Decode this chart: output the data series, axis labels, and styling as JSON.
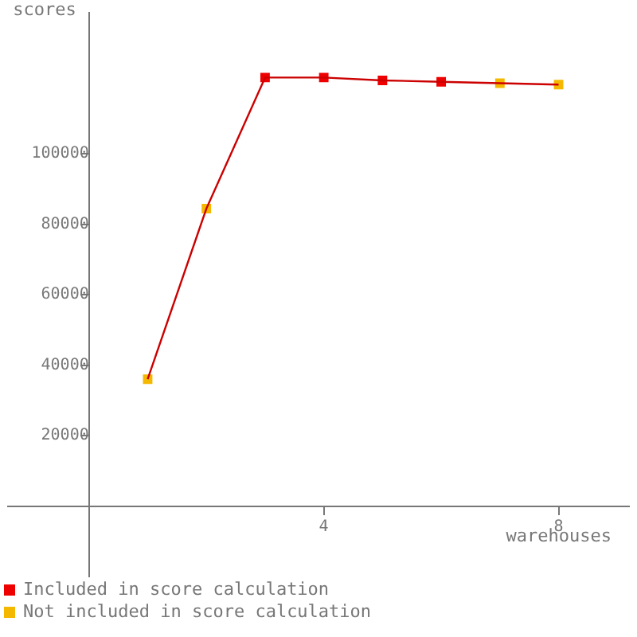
{
  "chart_data": {
    "type": "line",
    "xlabel": "warehouses",
    "ylabel": "scores",
    "x": [
      1,
      2,
      3,
      4,
      5,
      6,
      7,
      8
    ],
    "series": [
      {
        "color": "#cc0000",
        "marker": "none",
        "values": [
          36000,
          84400,
          121600,
          121600,
          120800,
          120400,
          120000,
          119600
        ]
      },
      {
        "type": "scatter",
        "name": "Included in score calculation",
        "color": "#ee0000",
        "marker": "square",
        "values": [
          null,
          null,
          121600,
          121600,
          120800,
          120400,
          null,
          null
        ]
      },
      {
        "type": "scatter",
        "name": "Not included in score calculation",
        "color": "#f5b800",
        "marker": "square",
        "values": [
          36000,
          84400,
          null,
          null,
          null,
          null,
          120000,
          119600
        ]
      }
    ],
    "xlim": [
      -1.38,
      9.2
    ],
    "ylim": [
      -20000,
      140000
    ],
    "xticks": [
      4,
      8
    ],
    "yticks": [
      20000,
      40000,
      60000,
      80000,
      100000
    ],
    "grid": false,
    "legend": "bottom left"
  }
}
